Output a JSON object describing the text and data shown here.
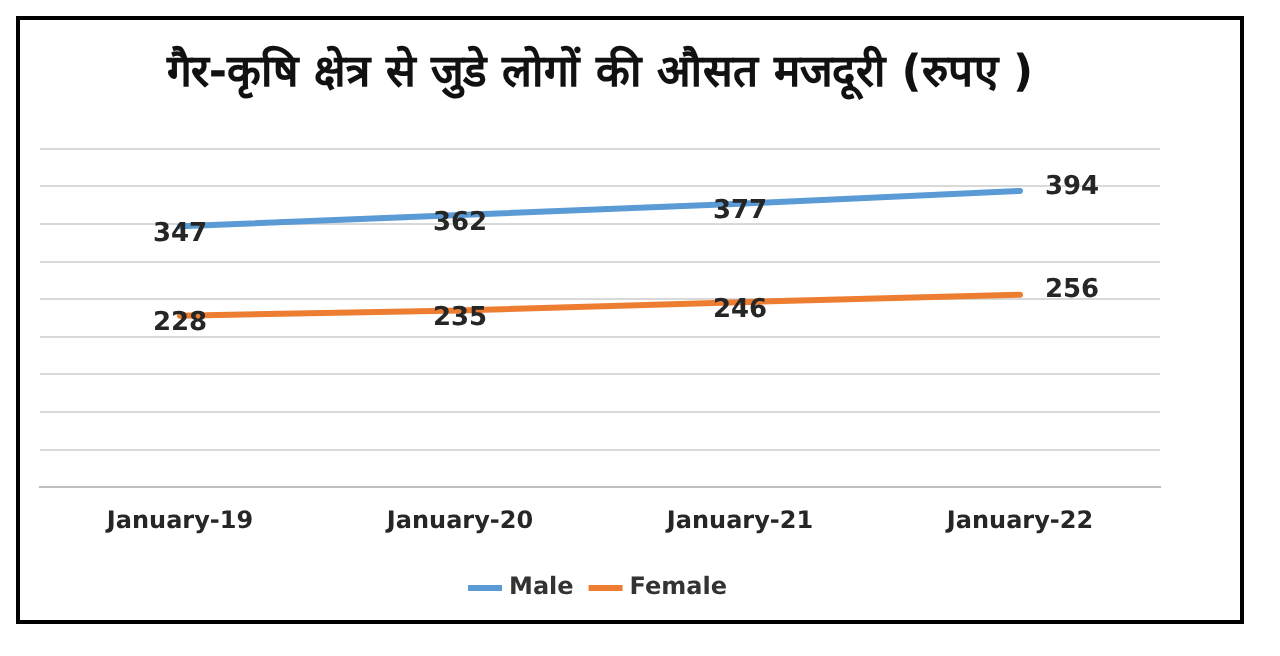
{
  "chart_data": {
    "type": "line",
    "title": "गैर-कृषि क्षेत्र से जुडे लोगों की औसत मजदूरी (रुपए )",
    "categories": [
      "January-19",
      "January-20",
      "January-21",
      "January-22"
    ],
    "series": [
      {
        "name": "Male",
        "color": "#5b9bd5",
        "values": [
          347,
          362,
          377,
          394
        ]
      },
      {
        "name": "Female",
        "color": "#ed7d31",
        "values": [
          228,
          235,
          246,
          256
        ]
      }
    ],
    "ylim": [
      0,
      450
    ],
    "yticks": [
      {
        "value": 0,
        "label": null
      },
      {
        "value": 50,
        "label": null
      },
      {
        "value": 100,
        "label": null
      },
      {
        "value": 150,
        "label": null
      },
      {
        "value": 200,
        "label": null
      },
      {
        "value": 250,
        "label": null
      },
      {
        "value": 300,
        "label": null
      },
      {
        "value": 350,
        "label": null
      },
      {
        "value": 400,
        "label": null
      },
      {
        "value": 450,
        "label": null
      }
    ],
    "grid": "y",
    "legend": "bottom",
    "tick_labels": "x",
    "data_labels": true,
    "marker": "none",
    "line_style": "solid"
  }
}
